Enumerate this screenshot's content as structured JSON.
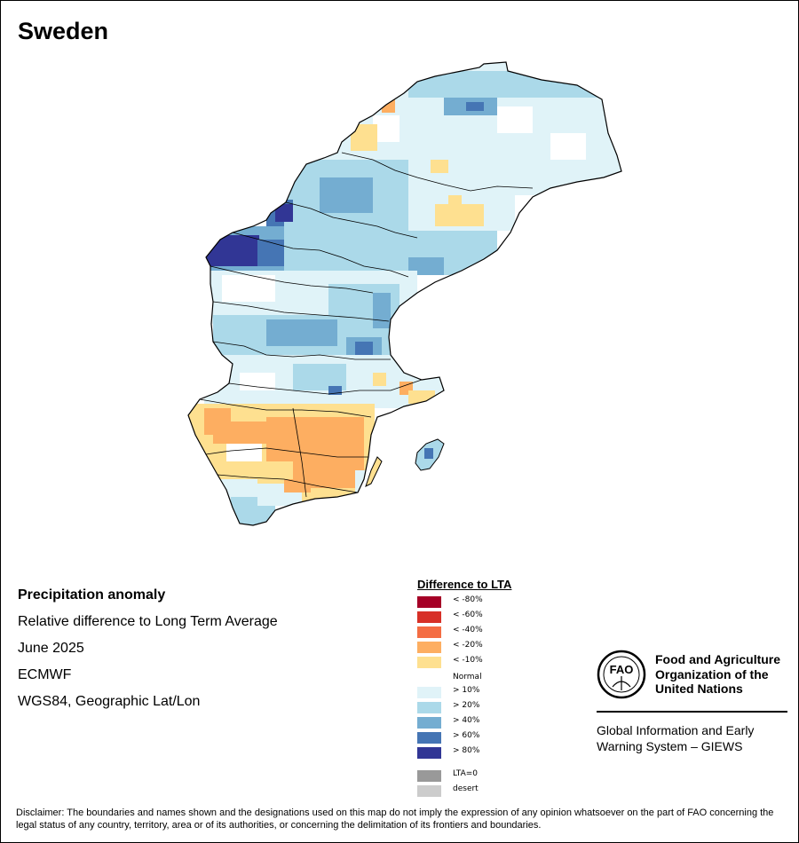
{
  "country": "Sweden",
  "info": {
    "heading": "Precipitation anomaly",
    "line1": "Relative difference to Long Term Average",
    "line2": "June 2025",
    "line3": "ECMWF",
    "line4": "WGS84, Geographic Lat/Lon"
  },
  "legend": {
    "title": "Difference to LTA",
    "dry": [
      {
        "label": "< -80%",
        "color": "#a50026"
      },
      {
        "label": "< -60%",
        "color": "#d73027"
      },
      {
        "label": "< -40%",
        "color": "#f46d43"
      },
      {
        "label": "< -20%",
        "color": "#fdae61"
      },
      {
        "label": "< -10%",
        "color": "#fee090"
      }
    ],
    "normal": "Normal",
    "wet": [
      {
        "label": "> 10%",
        "color": "#e0f3f8"
      },
      {
        "label": "> 20%",
        "color": "#abd9e9"
      },
      {
        "label": "> 40%",
        "color": "#74add1"
      },
      {
        "label": "> 60%",
        "color": "#4575b4"
      },
      {
        "label": "> 80%",
        "color": "#313695"
      }
    ],
    "extra": [
      {
        "label": "LTA=0",
        "color": "#999999"
      },
      {
        "label": "desert",
        "color": "#cccccc"
      }
    ]
  },
  "fao": {
    "line1": "Food and Agriculture",
    "line2": "Organization of the",
    "line3": "United Nations",
    "logo_text": "FAO",
    "logo_motto": "FIAT PANIS"
  },
  "giews": {
    "line1": "Global Information and Early",
    "line2": "Warning System – GIEWS"
  },
  "disclaimer": "Disclaimer: The boundaries and names shown and the designations used on this map do not imply the expression of any opinion whatsoever on the part of FAO concerning the legal status of any country, territory, area or of its authorities, or concerning the delimitation of its frontiers and boundaries."
}
